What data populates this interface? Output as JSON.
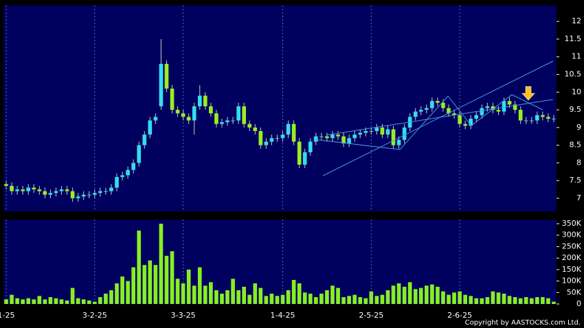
{
  "chart_data": [
    {
      "type": "candlestick",
      "open": [
        7.4,
        7.35,
        7.2,
        7.25,
        7.2,
        7.3,
        7.25,
        7.2,
        7.1,
        7.15,
        7.2,
        7.25,
        7.2,
        7.0,
        7.05,
        7.1,
        7.1,
        7.15,
        7.2,
        7.2,
        7.3,
        7.6,
        7.65,
        7.8,
        8.0,
        8.5,
        8.8,
        9.2,
        9.6,
        10.8,
        10.1,
        9.5,
        9.4,
        9.3,
        9.2,
        9.6,
        9.9,
        9.6,
        9.4,
        9.1,
        9.15,
        9.2,
        9.2,
        9.6,
        9.1,
        9.0,
        8.9,
        8.5,
        8.6,
        8.7,
        8.7,
        8.8,
        9.1,
        8.6,
        7.95,
        8.3,
        8.6,
        8.75,
        8.75,
        8.7,
        8.8,
        8.75,
        8.55,
        8.7,
        8.8,
        8.85,
        8.9,
        8.9,
        9.0,
        8.8,
        8.95,
        8.5,
        8.65,
        9.0,
        9.3,
        9.45,
        9.5,
        9.55,
        9.75,
        9.7,
        9.55,
        9.4,
        9.35,
        9.1,
        9.05,
        9.25,
        9.35,
        9.55,
        9.6,
        9.5,
        9.45,
        9.75,
        9.65,
        9.5,
        9.2,
        9.2,
        9.2,
        9.35,
        9.3,
        9.25
      ],
      "high": [
        7.5,
        7.45,
        7.35,
        7.35,
        7.4,
        7.4,
        7.35,
        7.3,
        7.25,
        7.3,
        7.35,
        7.35,
        7.3,
        7.15,
        7.2,
        7.2,
        7.25,
        7.3,
        7.3,
        7.4,
        7.7,
        7.75,
        7.9,
        8.1,
        8.6,
        8.9,
        9.3,
        9.4,
        11.5,
        10.9,
        10.2,
        9.6,
        9.5,
        9.4,
        9.7,
        10.2,
        10.0,
        9.7,
        9.5,
        9.25,
        9.3,
        9.3,
        9.7,
        9.7,
        9.2,
        9.1,
        9.0,
        8.7,
        8.8,
        8.8,
        8.9,
        9.2,
        9.2,
        8.7,
        8.4,
        8.7,
        8.85,
        8.85,
        8.85,
        8.9,
        8.9,
        8.85,
        8.8,
        8.9,
        8.95,
        9.0,
        9.0,
        9.1,
        9.1,
        9.05,
        9.05,
        8.75,
        9.1,
        9.4,
        9.55,
        9.6,
        9.65,
        9.85,
        9.85,
        9.8,
        9.65,
        9.5,
        9.45,
        9.2,
        9.35,
        9.45,
        9.65,
        9.7,
        9.7,
        9.6,
        9.85,
        9.85,
        9.75,
        9.6,
        9.3,
        9.3,
        9.45,
        9.45,
        9.4,
        9.35
      ],
      "low": [
        7.25,
        7.1,
        7.1,
        7.1,
        7.1,
        7.15,
        7.1,
        7.0,
        7.0,
        7.05,
        7.1,
        7.1,
        6.9,
        6.9,
        6.95,
        7.0,
        7.0,
        7.05,
        7.1,
        7.1,
        7.2,
        7.5,
        7.55,
        7.7,
        7.9,
        8.4,
        8.7,
        9.1,
        9.5,
        10.0,
        9.4,
        9.3,
        9.2,
        9.1,
        8.8,
        9.5,
        9.5,
        9.3,
        9.0,
        9.0,
        9.05,
        9.1,
        9.1,
        9.0,
        8.9,
        8.8,
        8.4,
        8.4,
        8.5,
        8.6,
        8.6,
        8.7,
        8.5,
        7.85,
        7.85,
        8.2,
        8.5,
        8.65,
        8.6,
        8.6,
        8.65,
        8.45,
        8.45,
        8.6,
        8.7,
        8.75,
        8.8,
        8.8,
        8.7,
        8.7,
        8.4,
        8.4,
        8.55,
        8.9,
        9.2,
        9.35,
        9.4,
        9.45,
        9.6,
        9.45,
        9.3,
        9.25,
        9.0,
        8.95,
        8.95,
        9.15,
        9.25,
        9.45,
        9.4,
        9.35,
        9.35,
        9.55,
        9.4,
        9.1,
        9.1,
        9.1,
        9.1,
        9.2,
        9.15,
        9.15
      ],
      "close": [
        7.35,
        7.2,
        7.25,
        7.2,
        7.3,
        7.25,
        7.2,
        7.1,
        7.15,
        7.2,
        7.25,
        7.2,
        7.0,
        7.05,
        7.1,
        7.1,
        7.15,
        7.2,
        7.2,
        7.3,
        7.6,
        7.65,
        7.8,
        8.0,
        8.5,
        8.8,
        9.2,
        9.3,
        10.8,
        10.1,
        9.5,
        9.4,
        9.3,
        9.2,
        9.6,
        9.9,
        9.6,
        9.4,
        9.1,
        9.15,
        9.2,
        9.2,
        9.6,
        9.1,
        9.0,
        8.9,
        8.5,
        8.6,
        8.7,
        8.7,
        8.8,
        9.1,
        8.6,
        7.95,
        8.3,
        8.6,
        8.75,
        8.75,
        8.7,
        8.8,
        8.75,
        8.55,
        8.7,
        8.8,
        8.85,
        8.9,
        8.9,
        9.0,
        8.8,
        8.95,
        8.5,
        8.65,
        9.0,
        9.3,
        9.45,
        9.5,
        9.55,
        9.75,
        9.7,
        9.55,
        9.4,
        9.35,
        9.1,
        9.05,
        9.25,
        9.35,
        9.55,
        9.6,
        9.5,
        9.45,
        9.75,
        9.65,
        9.5,
        9.2,
        9.2,
        9.2,
        9.35,
        9.3,
        9.25,
        9.25
      ],
      "up_color": "#33ddee",
      "down_color": "#99ee22",
      "xlim": [
        -0.5,
        99.5
      ],
      "ylim": [
        6.63,
        12.45
      ],
      "yticks": [
        7,
        7.5,
        8,
        8.5,
        9,
        9.5,
        10,
        10.5,
        11,
        11.5,
        12
      ],
      "xticks": [
        0,
        16,
        32,
        50,
        66,
        82
      ],
      "grid": true
    },
    {
      "type": "bar",
      "values": [
        20000,
        40000,
        25000,
        20000,
        25000,
        20000,
        35000,
        20000,
        30000,
        25000,
        20000,
        15000,
        70000,
        25000,
        20000,
        15000,
        10000,
        30000,
        45000,
        60000,
        90000,
        120000,
        100000,
        160000,
        320000,
        170000,
        190000,
        170000,
        350000,
        210000,
        230000,
        110000,
        90000,
        150000,
        80000,
        160000,
        80000,
        95000,
        60000,
        45000,
        60000,
        110000,
        60000,
        75000,
        40000,
        90000,
        70000,
        35000,
        45000,
        35000,
        40000,
        60000,
        105000,
        90000,
        50000,
        45000,
        30000,
        45000,
        60000,
        80000,
        70000,
        30000,
        35000,
        40000,
        30000,
        25000,
        55000,
        35000,
        40000,
        60000,
        80000,
        90000,
        75000,
        95000,
        65000,
        70000,
        80000,
        85000,
        75000,
        55000,
        40000,
        50000,
        55000,
        40000,
        35000,
        25000,
        25000,
        30000,
        55000,
        50000,
        45000,
        35000,
        30000,
        25000,
        30000,
        25000,
        30000,
        30000,
        25000,
        10000
      ],
      "color": "#88ee22",
      "xlim": [
        -0.5,
        99.5
      ],
      "ylim": [
        0,
        368000
      ],
      "yticks": [
        0,
        {
          "value": 50000,
          "label": "50K"
        },
        {
          "value": 100000,
          "label": "100K"
        },
        {
          "value": 150000,
          "label": "150K"
        },
        {
          "value": 200000,
          "label": "200K"
        },
        {
          "value": 250000,
          "label": "250K"
        },
        {
          "value": 300000,
          "label": "300K"
        },
        {
          "value": 350000,
          "label": "350K"
        }
      ],
      "xticks": [
        {
          "value": 0,
          "label": "1-25"
        },
        {
          "value": 16,
          "label": "3-2-25"
        },
        {
          "value": 32,
          "label": "3-3-25"
        },
        {
          "value": 50,
          "label": "1-4-25"
        },
        {
          "value": 66,
          "label": "2-5-25"
        },
        {
          "value": 82,
          "label": "2-6-25"
        }
      ],
      "grid": true
    }
  ],
  "copyright": "Copyright by AASTOCKS.com Ltd."
}
